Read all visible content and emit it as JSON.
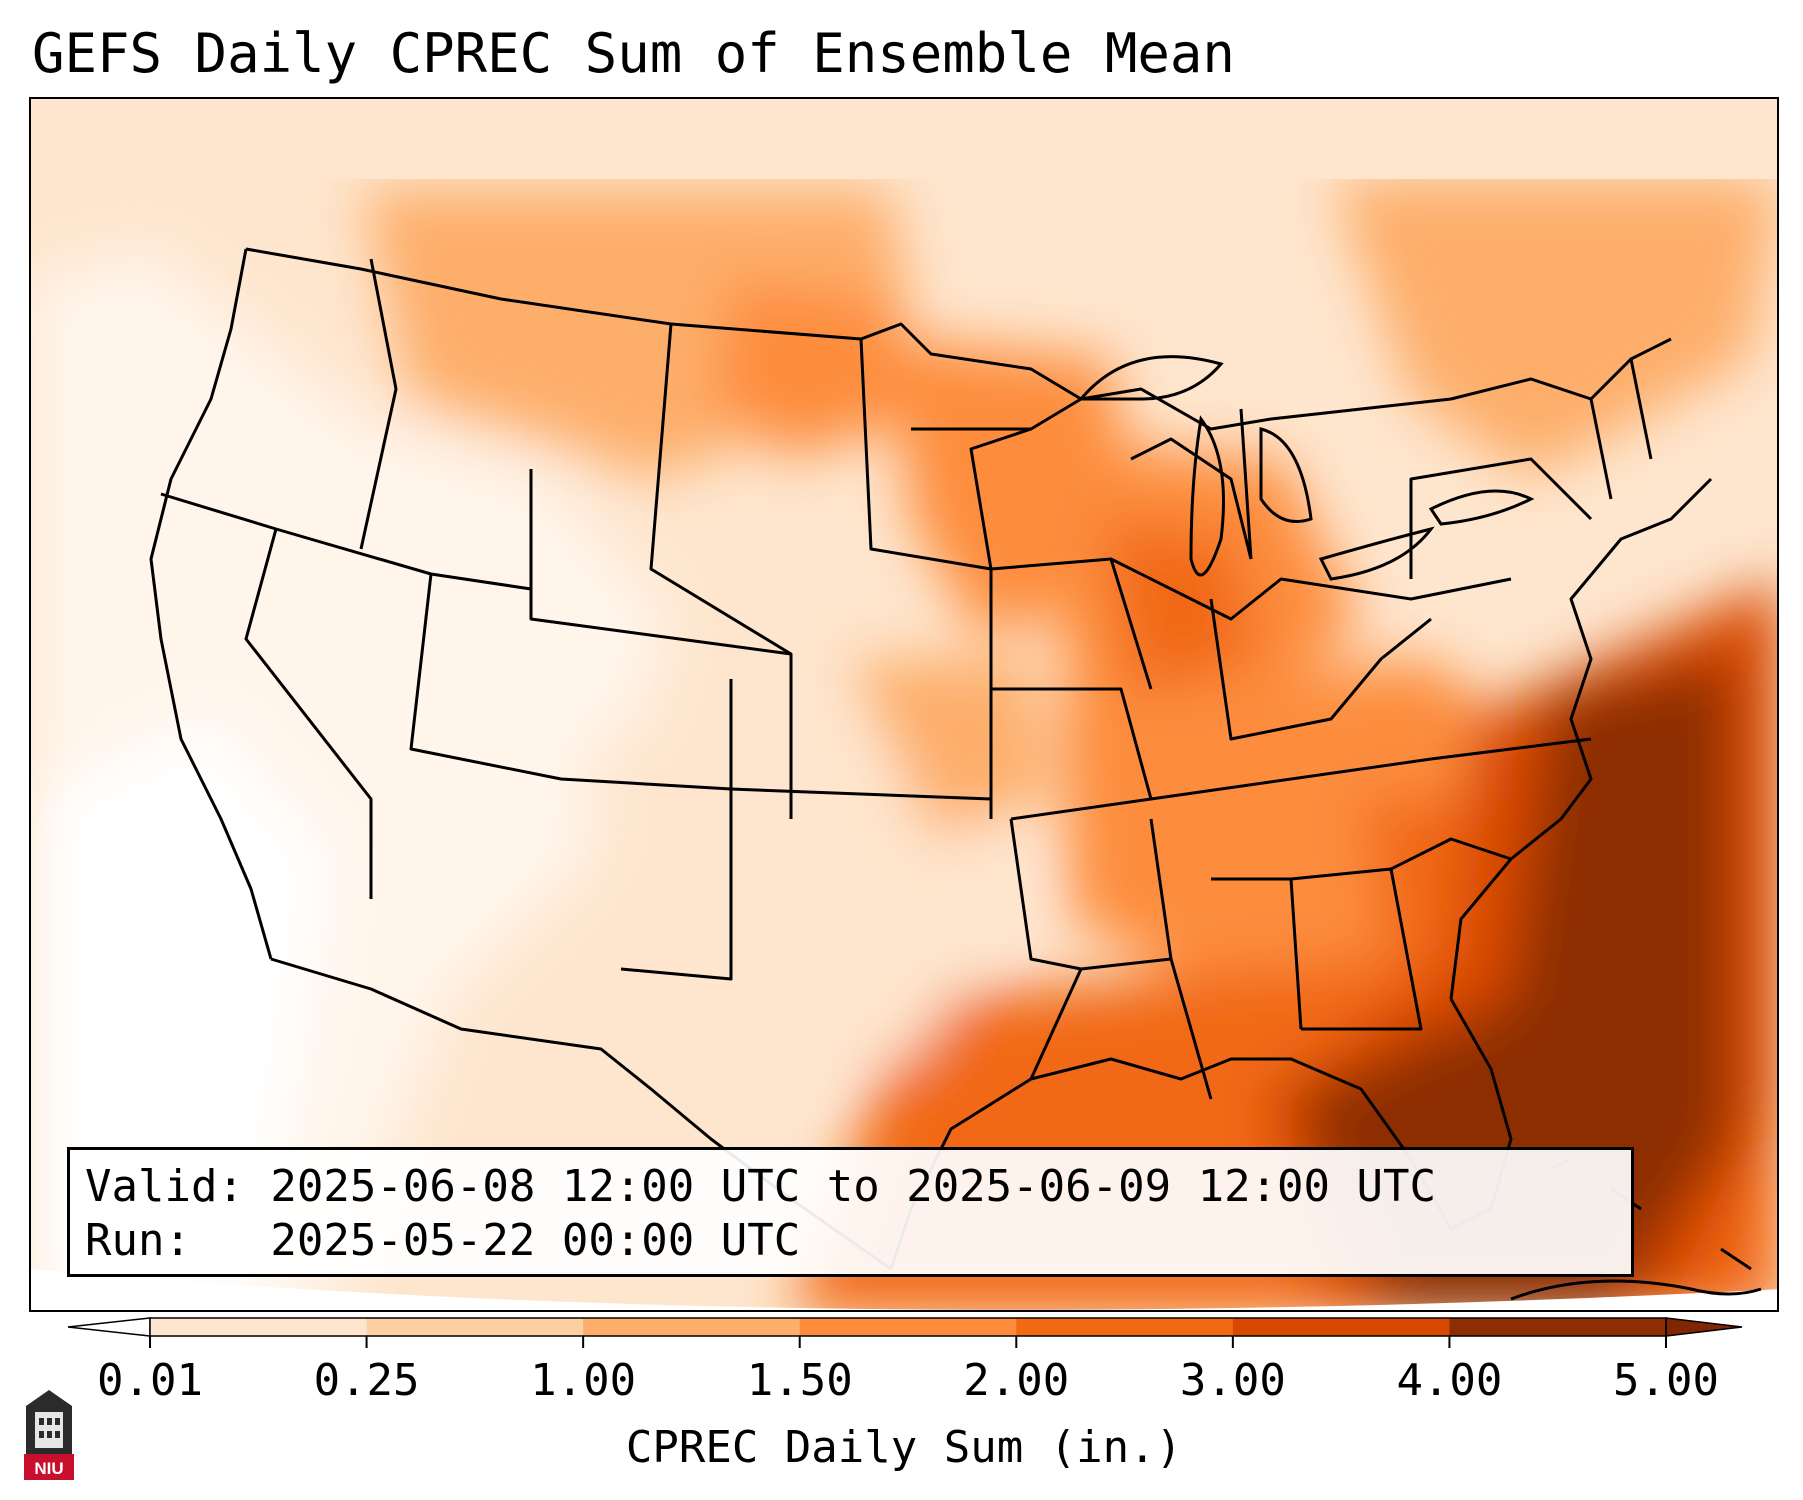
{
  "title": "GEFS Daily CPREC Sum of Ensemble Mean",
  "info": {
    "valid_line": "Valid: 2025-06-08 12:00 UTC to 2025-06-09 12:00 UTC",
    "run_line": "Run:   2025-05-22 00:00 UTC"
  },
  "colorbar": {
    "label": "CPREC Daily Sum (in.)",
    "ticks": [
      "0.01",
      "0.25",
      "1.00",
      "1.50",
      "2.00",
      "3.00",
      "4.00",
      "5.00"
    ],
    "colors": [
      "#fff5eb",
      "#fee6ce",
      "#fdd0a2",
      "#fdae6b",
      "#fd8d3c",
      "#f16913",
      "#d94801",
      "#8c2d04"
    ],
    "under_color": "#ffffff",
    "over_color": "#7f2704",
    "extend": "both"
  },
  "logo": {
    "text": "NIU",
    "colors": {
      "crest": "#2b2b2b",
      "band": "#c8102e"
    }
  },
  "map": {
    "region": "Continental United States, southern Canada, northern Mexico, Gulf of Mexico and Caribbean",
    "precip_regions": [
      {
        "area": "Pacific Northwest and Great Basin",
        "range": "0.01-0.25"
      },
      {
        "area": "Northern Rockies / Montana",
        "range": "0.25-1.50"
      },
      {
        "area": "Dakotas, Minnesota, Iowa",
        "range": "1.00-2.00"
      },
      {
        "area": "Midwest and Ohio Valley",
        "range": "1.50-3.00"
      },
      {
        "area": "Southeast and Carolinas",
        "range": "1.50-3.00"
      },
      {
        "area": "Eastern Gulf, Florida, western Atlantic",
        "range": "4.00-5.00+"
      }
    ]
  }
}
